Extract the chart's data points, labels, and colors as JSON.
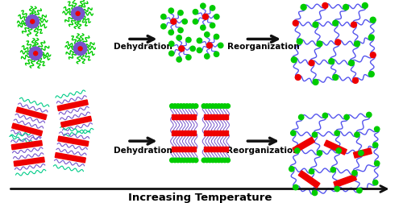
{
  "title": "Increasing Temperature",
  "dehydration_label": "Dehydration",
  "reorganization_label": "Reorganization",
  "fig_width": 5.0,
  "fig_height": 2.53,
  "dpi": 100,
  "bg_color": "#ffffff",
  "green_color": "#00cc00",
  "blue_color": "#5555ee",
  "red_color": "#ee0000",
  "purple_color": "#7755cc",
  "teal_color": "#00cc88",
  "arrow_color": "#111111",
  "text_color": "#000000",
  "label_fontsize": 7.5,
  "title_fontsize": 9.5
}
